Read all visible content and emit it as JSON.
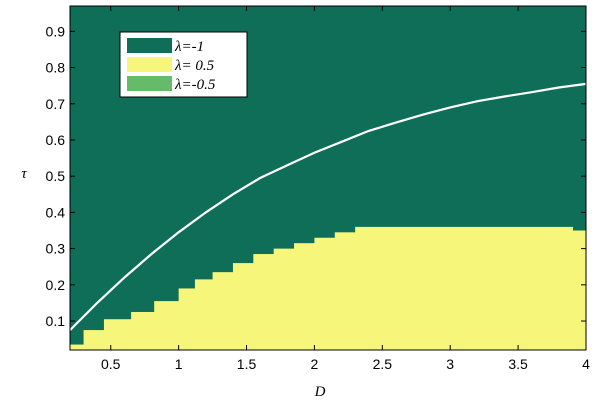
{
  "chart_data": {
    "type": "area",
    "xlabel": "D",
    "ylabel": "τ",
    "xlim": [
      0.2,
      4.0
    ],
    "ylim": [
      0.02,
      0.97
    ],
    "x_ticks": [
      0.5,
      1,
      1.5,
      2,
      2.5,
      3,
      3.5,
      4
    ],
    "x_tick_labels": [
      "0.5",
      "1",
      "1.5",
      "2",
      "2.5",
      "3",
      "3.5",
      "4"
    ],
    "y_ticks": [
      0.1,
      0.2,
      0.3,
      0.4,
      0.5,
      0.6,
      0.7,
      0.8,
      0.9
    ],
    "y_tick_labels": [
      "0.1",
      "0.2",
      "0.3",
      "0.4",
      "0.5",
      "0.6",
      "0.7",
      "0.8",
      "0.9"
    ],
    "grid": false,
    "legend_position": "top-left",
    "legend": [
      {
        "label": "λ=-1",
        "color": "#0e6e57"
      },
      {
        "label": "λ= 0.5",
        "color": "#f6f77a"
      },
      {
        "label": "λ=-0.5",
        "color": "#66bb6a"
      }
    ],
    "regions": {
      "background_color": "#0e6e57",
      "boundary_color": "#f6f77a",
      "boundary_steps": [
        {
          "x0": 0.2,
          "x1": 0.3,
          "y": 0.035
        },
        {
          "x0": 0.3,
          "x1": 0.45,
          "y": 0.075
        },
        {
          "x0": 0.45,
          "x1": 0.65,
          "y": 0.105
        },
        {
          "x0": 0.65,
          "x1": 0.82,
          "y": 0.125
        },
        {
          "x0": 0.82,
          "x1": 1.0,
          "y": 0.155
        },
        {
          "x0": 1.0,
          "x1": 1.12,
          "y": 0.19
        },
        {
          "x0": 1.12,
          "x1": 1.25,
          "y": 0.215
        },
        {
          "x0": 1.25,
          "x1": 1.4,
          "y": 0.235
        },
        {
          "x0": 1.4,
          "x1": 1.55,
          "y": 0.26
        },
        {
          "x0": 1.55,
          "x1": 1.7,
          "y": 0.285
        },
        {
          "x0": 1.7,
          "x1": 1.85,
          "y": 0.3
        },
        {
          "x0": 1.85,
          "x1": 2.0,
          "y": 0.315
        },
        {
          "x0": 2.0,
          "x1": 2.15,
          "y": 0.33
        },
        {
          "x0": 2.15,
          "x1": 2.3,
          "y": 0.345
        },
        {
          "x0": 2.3,
          "x1": 3.9,
          "y": 0.36
        },
        {
          "x0": 3.9,
          "x1": 4.0,
          "y": 0.35
        }
      ]
    },
    "series": [
      {
        "color": "#ffffff",
        "x": [
          0.2,
          0.4,
          0.6,
          0.8,
          1.0,
          1.2,
          1.4,
          1.6,
          1.8,
          2.0,
          2.2,
          2.4,
          2.6,
          2.8,
          3.0,
          3.2,
          3.4,
          3.6,
          3.8,
          4.0
        ],
        "y": [
          0.075,
          0.15,
          0.22,
          0.285,
          0.345,
          0.4,
          0.45,
          0.495,
          0.53,
          0.565,
          0.595,
          0.625,
          0.648,
          0.67,
          0.69,
          0.707,
          0.72,
          0.732,
          0.745,
          0.755
        ]
      }
    ]
  }
}
